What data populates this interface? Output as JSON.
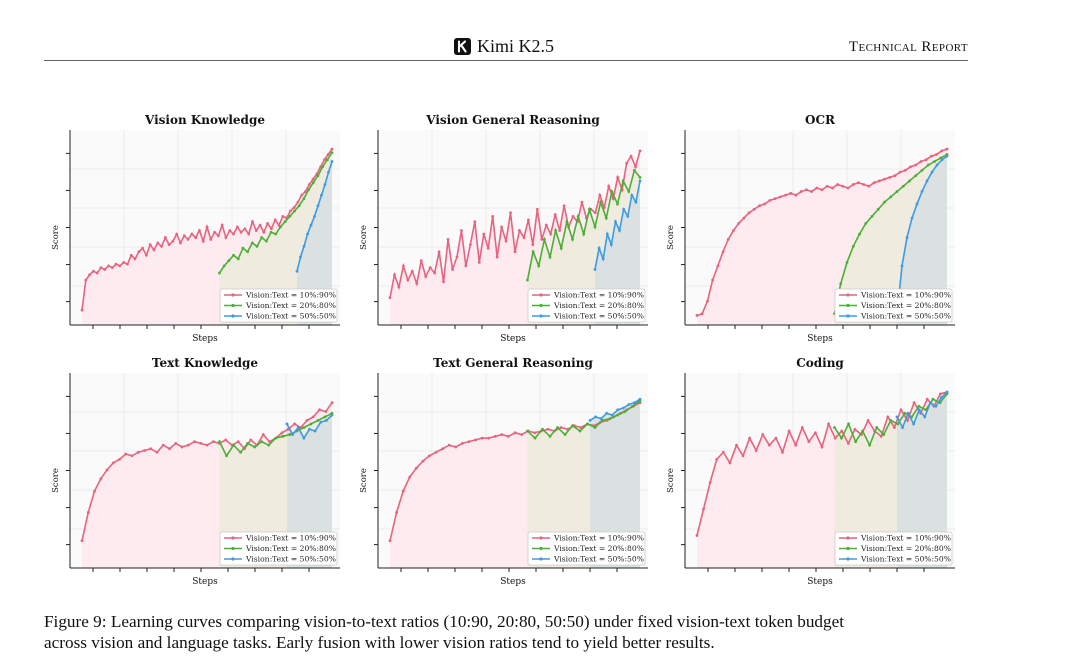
{
  "header": {
    "brand": "Kimi K2.5",
    "report": "Technical Report"
  },
  "caption": {
    "line1": "Figure 9: Learning curves comparing vision-to-text ratios (10:90, 20:80, 50:50) under fixed vision-text token budget",
    "line2": "across vision and language tasks. Early fusion with lower vision ratios tend to yield better results."
  },
  "colors": {
    "s10": "#e8637e",
    "s20": "#4caf35",
    "s50": "#3d9be3"
  },
  "chart_data": [
    {
      "type": "line",
      "title": "Vision Knowledge",
      "xlabel": "Steps",
      "ylabel": "Score",
      "legend": [
        "Vision:Text = 10%:90%",
        "Vision:Text = 20%:80%",
        "Vision:Text = 50%:50%"
      ],
      "series": [
        {
          "name": "Vision:Text = 10%:90%",
          "kind": "s10",
          "start": 0.0,
          "points": [
            0.05,
            0.22,
            0.25,
            0.27,
            0.26,
            0.29,
            0.28,
            0.3,
            0.29,
            0.31,
            0.3,
            0.32,
            0.31,
            0.36,
            0.34,
            0.38,
            0.4,
            0.36,
            0.42,
            0.39,
            0.43,
            0.41,
            0.46,
            0.42,
            0.44,
            0.48,
            0.43,
            0.47,
            0.45,
            0.48,
            0.46,
            0.5,
            0.44,
            0.52,
            0.45,
            0.49,
            0.47,
            0.53,
            0.46,
            0.5,
            0.48,
            0.52,
            0.49,
            0.51,
            0.48,
            0.55,
            0.5,
            0.53,
            0.49,
            0.54,
            0.51,
            0.56,
            0.53,
            0.58,
            0.57,
            0.61,
            0.63,
            0.66,
            0.7,
            0.72,
            0.76,
            0.79,
            0.82,
            0.86,
            0.9,
            0.93,
            0.96
          ]
        },
        {
          "name": "Vision:Text = 20%:80%",
          "kind": "s20",
          "start": 0.55,
          "points": [
            0.26,
            0.3,
            0.33,
            0.36,
            0.34,
            0.4,
            0.38,
            0.43,
            0.41,
            0.46,
            0.44,
            0.49,
            0.48,
            0.52,
            0.55,
            0.58,
            0.61,
            0.64,
            0.68,
            0.73,
            0.77,
            0.81,
            0.86,
            0.9,
            0.94
          ]
        },
        {
          "name": "Vision:Text = 50%:50%",
          "kind": "s50",
          "start": 0.86,
          "points": [
            0.27,
            0.35,
            0.41,
            0.48,
            0.53,
            0.58,
            0.64,
            0.7,
            0.76,
            0.83,
            0.89
          ]
        }
      ]
    },
    {
      "type": "line",
      "title": "Vision General Reasoning",
      "xlabel": "Steps",
      "ylabel": "Score",
      "legend": [
        "Vision:Text = 10%:90%",
        "Vision:Text = 20%:80%",
        "Vision:Text = 50%:50%"
      ],
      "series": [
        {
          "name": "Vision:Text = 10%:90%",
          "kind": "s10",
          "start": 0.0,
          "points": [
            0.12,
            0.25,
            0.18,
            0.3,
            0.22,
            0.27,
            0.2,
            0.33,
            0.24,
            0.29,
            0.26,
            0.38,
            0.21,
            0.45,
            0.28,
            0.35,
            0.5,
            0.3,
            0.42,
            0.55,
            0.32,
            0.48,
            0.4,
            0.58,
            0.35,
            0.52,
            0.44,
            0.6,
            0.38,
            0.5,
            0.46,
            0.56,
            0.42,
            0.62,
            0.45,
            0.53,
            0.48,
            0.59,
            0.5,
            0.64,
            0.52,
            0.58,
            0.55,
            0.66,
            0.57,
            0.62,
            0.6,
            0.7,
            0.63,
            0.75,
            0.68,
            0.8,
            0.73,
            0.88,
            0.92,
            0.86,
            0.95
          ]
        },
        {
          "name": "Vision:Text = 20%:80%",
          "kind": "s20",
          "start": 0.55,
          "points": [
            0.22,
            0.38,
            0.3,
            0.45,
            0.35,
            0.5,
            0.4,
            0.55,
            0.45,
            0.58,
            0.48,
            0.62,
            0.52,
            0.66,
            0.57,
            0.72,
            0.65,
            0.78,
            0.72,
            0.84,
            0.8
          ]
        },
        {
          "name": "Vision:Text = 50%:50%",
          "kind": "s50",
          "start": 0.82,
          "points": [
            0.28,
            0.4,
            0.34,
            0.48,
            0.42,
            0.55,
            0.5,
            0.62,
            0.58,
            0.7,
            0.66,
            0.78
          ]
        }
      ]
    },
    {
      "type": "line",
      "title": "OCR",
      "xlabel": "Steps",
      "ylabel": "Score",
      "legend": [
        "Vision:Text = 10%:90%",
        "Vision:Text = 20%:80%",
        "Vision:Text = 50%:50%"
      ],
      "series": [
        {
          "name": "Vision:Text = 10%:90%",
          "kind": "s10",
          "start": 0.0,
          "points": [
            0.02,
            0.03,
            0.1,
            0.22,
            0.3,
            0.38,
            0.45,
            0.5,
            0.54,
            0.57,
            0.6,
            0.62,
            0.64,
            0.65,
            0.67,
            0.68,
            0.69,
            0.7,
            0.71,
            0.7,
            0.72,
            0.73,
            0.72,
            0.74,
            0.73,
            0.75,
            0.74,
            0.76,
            0.75,
            0.74,
            0.76,
            0.77,
            0.76,
            0.75,
            0.77,
            0.78,
            0.79,
            0.8,
            0.81,
            0.83,
            0.84,
            0.86,
            0.87,
            0.89,
            0.9,
            0.92,
            0.93,
            0.95,
            0.96
          ]
        },
        {
          "name": "Vision:Text = 20%:80%",
          "kind": "s20",
          "start": 0.55,
          "points": [
            0.03,
            0.2,
            0.32,
            0.41,
            0.48,
            0.54,
            0.58,
            0.62,
            0.66,
            0.69,
            0.72,
            0.75,
            0.78,
            0.81,
            0.84,
            0.87,
            0.89,
            0.91,
            0.93
          ]
        },
        {
          "name": "Vision:Text = 50%:50%",
          "kind": "s50",
          "start": 0.8,
          "points": [
            0.02,
            0.3,
            0.46,
            0.57,
            0.65,
            0.72,
            0.78,
            0.83,
            0.87,
            0.9,
            0.92
          ]
        }
      ]
    },
    {
      "type": "line",
      "title": "Text Knowledge",
      "xlabel": "Steps",
      "ylabel": "Score",
      "legend": [
        "Vision:Text = 10%:90%",
        "Vision:Text = 20%:80%",
        "Vision:Text = 50%:50%"
      ],
      "series": [
        {
          "name": "Vision:Text = 10%:90%",
          "kind": "s10",
          "start": 0.0,
          "points": [
            0.12,
            0.28,
            0.4,
            0.47,
            0.52,
            0.56,
            0.58,
            0.61,
            0.6,
            0.62,
            0.63,
            0.64,
            0.62,
            0.66,
            0.64,
            0.67,
            0.65,
            0.66,
            0.68,
            0.67,
            0.66,
            0.68,
            0.67,
            0.69,
            0.66,
            0.68,
            0.64,
            0.69,
            0.66,
            0.72,
            0.68,
            0.7,
            0.73,
            0.75,
            0.78,
            0.76,
            0.8,
            0.82,
            0.86,
            0.85,
            0.9
          ]
        },
        {
          "name": "Vision:Text = 20%:80%",
          "kind": "s20",
          "start": 0.55,
          "points": [
            0.68,
            0.6,
            0.66,
            0.62,
            0.67,
            0.65,
            0.68,
            0.66,
            0.7,
            0.71,
            0.72,
            0.74,
            0.76,
            0.78,
            0.8,
            0.82,
            0.84
          ]
        },
        {
          "name": "Vision:Text = 50%:50%",
          "kind": "s50",
          "start": 0.82,
          "points": [
            0.78,
            0.72,
            0.76,
            0.7,
            0.75,
            0.74,
            0.79,
            0.8,
            0.83
          ]
        }
      ]
    },
    {
      "type": "line",
      "title": "Text General Reasoning",
      "xlabel": "Steps",
      "ylabel": "Score",
      "legend": [
        "Vision:Text = 10%:90%",
        "Vision:Text = 20%:80%",
        "Vision:Text = 50%:50%"
      ],
      "series": [
        {
          "name": "Vision:Text = 10%:90%",
          "kind": "s10",
          "start": 0.0,
          "points": [
            0.12,
            0.28,
            0.4,
            0.48,
            0.53,
            0.57,
            0.6,
            0.62,
            0.64,
            0.66,
            0.65,
            0.67,
            0.68,
            0.69,
            0.7,
            0.7,
            0.71,
            0.72,
            0.71,
            0.73,
            0.72,
            0.74,
            0.73,
            0.74,
            0.75,
            0.74,
            0.76,
            0.75,
            0.77,
            0.76,
            0.78,
            0.77,
            0.79,
            0.8,
            0.82,
            0.84,
            0.86,
            0.88,
            0.9
          ]
        },
        {
          "name": "Vision:Text = 20%:80%",
          "kind": "s20",
          "start": 0.55,
          "points": [
            0.74,
            0.7,
            0.75,
            0.71,
            0.76,
            0.72,
            0.77,
            0.74,
            0.78,
            0.76,
            0.8,
            0.81,
            0.83,
            0.85,
            0.88,
            0.91
          ]
        },
        {
          "name": "Vision:Text = 50%:50%",
          "kind": "s50",
          "start": 0.8,
          "points": [
            0.8,
            0.82,
            0.81,
            0.84,
            0.83,
            0.86,
            0.87,
            0.89,
            0.9,
            0.92
          ]
        }
      ]
    },
    {
      "type": "line",
      "title": "Coding",
      "xlabel": "Steps",
      "ylabel": "Score",
      "legend": [
        "Vision:Text = 10%:90%",
        "Vision:Text = 20%:80%",
        "Vision:Text = 50%:50%"
      ],
      "series": [
        {
          "name": "Vision:Text = 10%:90%",
          "kind": "s10",
          "start": 0.0,
          "points": [
            0.15,
            0.3,
            0.45,
            0.58,
            0.62,
            0.56,
            0.66,
            0.6,
            0.7,
            0.63,
            0.72,
            0.66,
            0.7,
            0.62,
            0.74,
            0.66,
            0.76,
            0.68,
            0.73,
            0.65,
            0.78,
            0.7,
            0.74,
            0.67,
            0.75,
            0.72,
            0.8,
            0.74,
            0.71,
            0.82,
            0.76,
            0.86,
            0.8,
            0.9,
            0.84,
            0.92,
            0.88,
            0.95,
            0.96
          ]
        },
        {
          "name": "Vision:Text = 20%:80%",
          "kind": "s20",
          "start": 0.55,
          "points": [
            0.76,
            0.7,
            0.78,
            0.68,
            0.74,
            0.66,
            0.76,
            0.72,
            0.8,
            0.78,
            0.84,
            0.82,
            0.88,
            0.86,
            0.92,
            0.9,
            0.95
          ]
        },
        {
          "name": "Vision:Text = 50%:50%",
          "kind": "s50",
          "start": 0.8,
          "points": [
            0.82,
            0.76,
            0.84,
            0.78,
            0.86,
            0.82,
            0.9,
            0.88,
            0.93,
            0.96
          ]
        }
      ]
    }
  ]
}
